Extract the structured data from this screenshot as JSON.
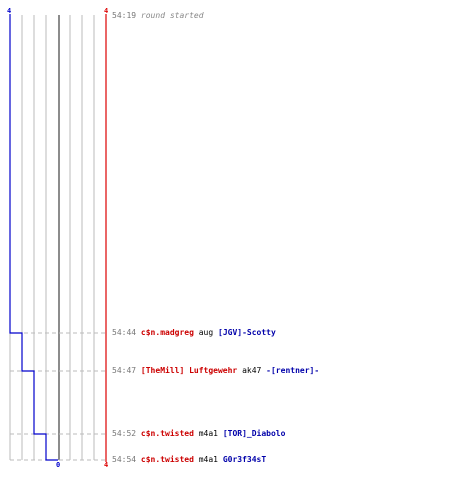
{
  "header": {
    "blue_count": "4",
    "red_count": "4"
  },
  "footer": {
    "blue_count": "0",
    "red_count": "4"
  },
  "events": [
    {
      "time": "54:19",
      "message": "round started"
    },
    {
      "time": "54:44",
      "killer": "c$n.madgreg",
      "weapon": "aug",
      "victim": "[JGV]-Scotty"
    },
    {
      "time": "54:47",
      "killer": "[TheMill] Luftgewehr",
      "weapon": "ak47",
      "victim": "-[rentner]-"
    },
    {
      "time": "54:52",
      "killer": "c$n.twisted",
      "weapon": "m4a1",
      "victim": "[TOR]_Diabolo"
    },
    {
      "time": "54:54",
      "killer": "c$n.twisted",
      "weapon": "m4a1",
      "victim": "G0r3f34sT"
    }
  ],
  "colors": {
    "blue_team": "#0000cc",
    "red_team": "#dd0000",
    "grid": "#bbbbbb",
    "center_line": "#666666",
    "dash": "#bbbbbb"
  }
}
